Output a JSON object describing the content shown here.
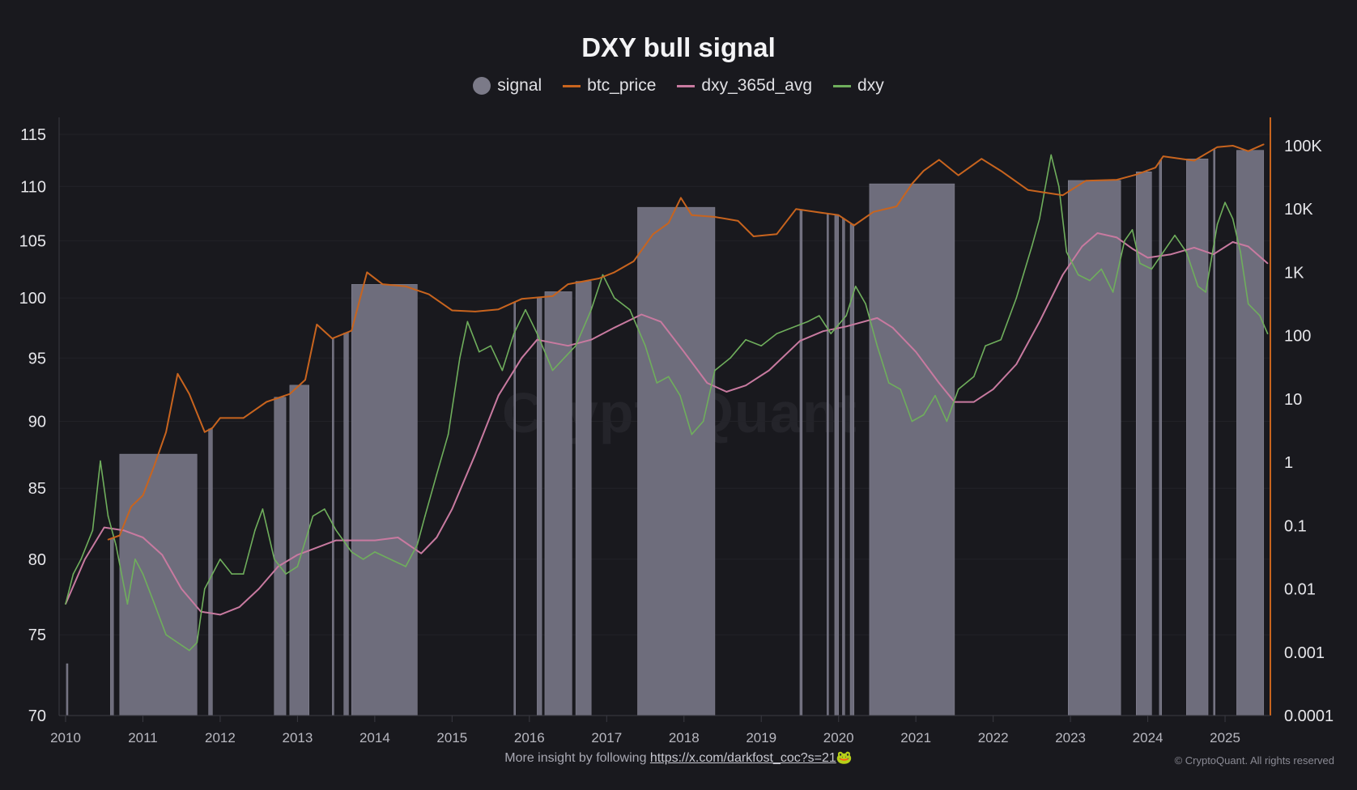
{
  "chart_data": {
    "type": "line",
    "title": "DXY bull signal",
    "legend": [
      {
        "name": "signal",
        "color": "#7b7a88",
        "marker": "circle"
      },
      {
        "name": "btc_price",
        "color": "#c8641e",
        "marker": "line"
      },
      {
        "name": "dxy_365d_avg",
        "color": "#c87aa0",
        "marker": "line"
      },
      {
        "name": "dxy",
        "color": "#6fae5c",
        "marker": "line"
      }
    ],
    "legend_position": "top-center",
    "x_ticks": [
      "2010",
      "2011",
      "2012",
      "2013",
      "2014",
      "2015",
      "2016",
      "2017",
      "2018",
      "2019",
      "2020",
      "2021",
      "2022",
      "2023",
      "2024",
      "2025"
    ],
    "xlim": [
      2010,
      2025.62
    ],
    "y_left": {
      "scale": "log",
      "range": [
        70,
        115
      ],
      "ticks": [
        "70",
        "75",
        "80",
        "85",
        "90",
        "95",
        "100",
        "105",
        "110",
        "115"
      ]
    },
    "y_right": {
      "scale": "log",
      "range": [
        0.0001,
        100000
      ],
      "ticks": [
        "0.0001",
        "0.001",
        "0.01",
        "0.1",
        "1",
        "10",
        "100",
        "1K",
        "10K",
        "100K"
      ]
    },
    "series": [
      {
        "name": "dxy",
        "axis": "left",
        "points": [
          [
            2010.0,
            77
          ],
          [
            2010.1,
            79
          ],
          [
            2010.2,
            80
          ],
          [
            2010.35,
            82
          ],
          [
            2010.45,
            87
          ],
          [
            2010.55,
            83
          ],
          [
            2010.65,
            81
          ],
          [
            2010.8,
            77
          ],
          [
            2010.9,
            80
          ],
          [
            2011.0,
            79
          ],
          [
            2011.15,
            77
          ],
          [
            2011.3,
            75
          ],
          [
            2011.45,
            74.5
          ],
          [
            2011.6,
            74
          ],
          [
            2011.7,
            74.5
          ],
          [
            2011.8,
            78
          ],
          [
            2011.9,
            79
          ],
          [
            2012.0,
            80
          ],
          [
            2012.15,
            79
          ],
          [
            2012.3,
            79
          ],
          [
            2012.45,
            82
          ],
          [
            2012.55,
            83.5
          ],
          [
            2012.7,
            80
          ],
          [
            2012.85,
            79
          ],
          [
            2013.0,
            79.5
          ],
          [
            2013.2,
            83
          ],
          [
            2013.35,
            83.5
          ],
          [
            2013.5,
            82
          ],
          [
            2013.7,
            80.5
          ],
          [
            2013.85,
            80
          ],
          [
            2014.0,
            80.5
          ],
          [
            2014.2,
            80
          ],
          [
            2014.4,
            79.5
          ],
          [
            2014.55,
            81
          ],
          [
            2014.65,
            83
          ],
          [
            2014.8,
            86
          ],
          [
            2014.95,
            89
          ],
          [
            2015.1,
            95
          ],
          [
            2015.2,
            98
          ],
          [
            2015.35,
            95.5
          ],
          [
            2015.5,
            96
          ],
          [
            2015.65,
            94
          ],
          [
            2015.8,
            97
          ],
          [
            2015.95,
            99
          ],
          [
            2016.1,
            97
          ],
          [
            2016.3,
            94
          ],
          [
            2016.45,
            95
          ],
          [
            2016.6,
            96
          ],
          [
            2016.8,
            99
          ],
          [
            2016.95,
            102
          ],
          [
            2017.1,
            100
          ],
          [
            2017.3,
            99
          ],
          [
            2017.5,
            96
          ],
          [
            2017.65,
            93
          ],
          [
            2017.8,
            93.5
          ],
          [
            2017.95,
            92
          ],
          [
            2018.1,
            89
          ],
          [
            2018.25,
            90
          ],
          [
            2018.4,
            94
          ],
          [
            2018.6,
            95
          ],
          [
            2018.8,
            96.5
          ],
          [
            2019.0,
            96
          ],
          [
            2019.2,
            97
          ],
          [
            2019.4,
            97.5
          ],
          [
            2019.6,
            98
          ],
          [
            2019.75,
            98.5
          ],
          [
            2019.9,
            97
          ],
          [
            2020.1,
            98.5
          ],
          [
            2020.22,
            101
          ],
          [
            2020.35,
            99.5
          ],
          [
            2020.5,
            96
          ],
          [
            2020.65,
            93
          ],
          [
            2020.8,
            92.5
          ],
          [
            2020.95,
            90
          ],
          [
            2021.1,
            90.5
          ],
          [
            2021.25,
            92
          ],
          [
            2021.4,
            90
          ],
          [
            2021.55,
            92.5
          ],
          [
            2021.75,
            93.5
          ],
          [
            2021.9,
            96
          ],
          [
            2022.1,
            96.5
          ],
          [
            2022.3,
            100
          ],
          [
            2022.5,
            104.5
          ],
          [
            2022.6,
            107
          ],
          [
            2022.75,
            113
          ],
          [
            2022.85,
            110
          ],
          [
            2022.95,
            104
          ],
          [
            2023.1,
            102
          ],
          [
            2023.25,
            101.5
          ],
          [
            2023.4,
            102.5
          ],
          [
            2023.55,
            100.5
          ],
          [
            2023.7,
            105
          ],
          [
            2023.8,
            106
          ],
          [
            2023.9,
            103
          ],
          [
            2024.05,
            102.5
          ],
          [
            2024.2,
            104
          ],
          [
            2024.35,
            105.5
          ],
          [
            2024.5,
            104
          ],
          [
            2024.65,
            101
          ],
          [
            2024.75,
            100.5
          ],
          [
            2024.9,
            106.5
          ],
          [
            2025.0,
            108.5
          ],
          [
            2025.1,
            107
          ],
          [
            2025.2,
            104
          ],
          [
            2025.3,
            99.5
          ],
          [
            2025.45,
            98.5
          ],
          [
            2025.55,
            97
          ]
        ]
      },
      {
        "name": "dxy_365d_avg",
        "axis": "left",
        "points": [
          [
            2010.0,
            77
          ],
          [
            2010.25,
            80
          ],
          [
            2010.5,
            82.2
          ],
          [
            2010.75,
            82
          ],
          [
            2011.0,
            81.5
          ],
          [
            2011.25,
            80.3
          ],
          [
            2011.5,
            78
          ],
          [
            2011.75,
            76.5
          ],
          [
            2012.0,
            76.3
          ],
          [
            2012.25,
            76.8
          ],
          [
            2012.5,
            78
          ],
          [
            2012.75,
            79.5
          ],
          [
            2013.0,
            80.3
          ],
          [
            2013.5,
            81.3
          ],
          [
            2014.0,
            81.3
          ],
          [
            2014.3,
            81.5
          ],
          [
            2014.6,
            80.4
          ],
          [
            2014.8,
            81.5
          ],
          [
            2015.0,
            83.5
          ],
          [
            2015.3,
            87.5
          ],
          [
            2015.6,
            92
          ],
          [
            2015.9,
            95
          ],
          [
            2016.1,
            96.5
          ],
          [
            2016.5,
            96
          ],
          [
            2016.8,
            96.5
          ],
          [
            2017.1,
            97.5
          ],
          [
            2017.45,
            98.6
          ],
          [
            2017.7,
            98
          ],
          [
            2018.0,
            95.5
          ],
          [
            2018.3,
            93
          ],
          [
            2018.55,
            92.3
          ],
          [
            2018.8,
            92.8
          ],
          [
            2019.1,
            94
          ],
          [
            2019.5,
            96.4
          ],
          [
            2019.8,
            97.2
          ],
          [
            2020.1,
            97.6
          ],
          [
            2020.5,
            98.3
          ],
          [
            2020.7,
            97.5
          ],
          [
            2021.0,
            95.5
          ],
          [
            2021.3,
            93
          ],
          [
            2021.5,
            91.5
          ],
          [
            2021.75,
            91.5
          ],
          [
            2022.0,
            92.5
          ],
          [
            2022.3,
            94.5
          ],
          [
            2022.6,
            98
          ],
          [
            2022.9,
            102
          ],
          [
            2023.15,
            104.5
          ],
          [
            2023.35,
            105.7
          ],
          [
            2023.6,
            105.3
          ],
          [
            2023.8,
            104.3
          ],
          [
            2024.0,
            103.5
          ],
          [
            2024.3,
            103.8
          ],
          [
            2024.6,
            104.4
          ],
          [
            2024.85,
            103.8
          ],
          [
            2025.1,
            104.9
          ],
          [
            2025.3,
            104.5
          ],
          [
            2025.55,
            103
          ]
        ]
      },
      {
        "name": "btc_price",
        "axis": "right",
        "points": [
          [
            2010.55,
            0.06
          ],
          [
            2010.7,
            0.07
          ],
          [
            2010.85,
            0.2
          ],
          [
            2011.0,
            0.3
          ],
          [
            2011.15,
            0.9
          ],
          [
            2011.3,
            3
          ],
          [
            2011.45,
            25
          ],
          [
            2011.6,
            12
          ],
          [
            2011.8,
            3
          ],
          [
            2011.9,
            3.5
          ],
          [
            2012.0,
            5
          ],
          [
            2012.3,
            5
          ],
          [
            2012.6,
            9
          ],
          [
            2012.9,
            12
          ],
          [
            2013.1,
            20
          ],
          [
            2013.25,
            150
          ],
          [
            2013.45,
            90
          ],
          [
            2013.7,
            120
          ],
          [
            2013.9,
            1000
          ],
          [
            2014.1,
            650
          ],
          [
            2014.4,
            600
          ],
          [
            2014.7,
            450
          ],
          [
            2015.0,
            250
          ],
          [
            2015.3,
            240
          ],
          [
            2015.6,
            260
          ],
          [
            2015.9,
            380
          ],
          [
            2016.3,
            420
          ],
          [
            2016.5,
            650
          ],
          [
            2016.9,
            800
          ],
          [
            2017.1,
            1000
          ],
          [
            2017.35,
            1500
          ],
          [
            2017.6,
            4000
          ],
          [
            2017.8,
            6000
          ],
          [
            2017.96,
            15000
          ],
          [
            2018.1,
            8000
          ],
          [
            2018.4,
            7500
          ],
          [
            2018.7,
            6500
          ],
          [
            2018.9,
            3700
          ],
          [
            2019.2,
            4000
          ],
          [
            2019.45,
            10000
          ],
          [
            2019.7,
            9000
          ],
          [
            2020.0,
            8000
          ],
          [
            2020.2,
            5500
          ],
          [
            2020.45,
            9000
          ],
          [
            2020.75,
            11000
          ],
          [
            2020.95,
            25000
          ],
          [
            2021.1,
            40000
          ],
          [
            2021.3,
            60000
          ],
          [
            2021.55,
            34000
          ],
          [
            2021.85,
            62000
          ],
          [
            2022.1,
            40000
          ],
          [
            2022.45,
            20000
          ],
          [
            2022.9,
            16500
          ],
          [
            2023.2,
            28000
          ],
          [
            2023.6,
            29000
          ],
          [
            2023.85,
            35000
          ],
          [
            2024.1,
            45000
          ],
          [
            2024.2,
            68000
          ],
          [
            2024.6,
            58000
          ],
          [
            2024.9,
            95000
          ],
          [
            2025.1,
            100000
          ],
          [
            2025.3,
            82000
          ],
          [
            2025.5,
            105000
          ]
        ]
      }
    ],
    "signal_intervals": [
      [
        2010.01,
        2010.03
      ],
      [
        2010.58,
        2010.62
      ],
      [
        2010.7,
        2011.7
      ],
      [
        2011.85,
        2011.9
      ],
      [
        2012.7,
        2012.85
      ],
      [
        2012.9,
        2013.15
      ],
      [
        2013.45,
        2013.47
      ],
      [
        2013.6,
        2013.66
      ],
      [
        2013.7,
        2014.55
      ],
      [
        2015.8,
        2015.82
      ],
      [
        2016.1,
        2016.16
      ],
      [
        2016.2,
        2016.55
      ],
      [
        2016.6,
        2016.8
      ],
      [
        2017.4,
        2018.4
      ],
      [
        2019.5,
        2019.53
      ],
      [
        2019.85,
        2019.87
      ],
      [
        2019.95,
        2020.0
      ],
      [
        2020.05,
        2020.08
      ],
      [
        2020.15,
        2020.2
      ],
      [
        2020.4,
        2021.5
      ],
      [
        2022.97,
        2023.65
      ],
      [
        2023.85,
        2024.05
      ],
      [
        2024.15,
        2024.18
      ],
      [
        2024.5,
        2024.78
      ],
      [
        2024.85,
        2024.87
      ],
      [
        2025.15,
        2025.5
      ]
    ]
  },
  "footer": {
    "text": "More insight by following ",
    "link": "https://x.com/darkfost_coc?s=21",
    "emoji": "🐸"
  },
  "copyright": "© CryptoQuant. All rights reserved",
  "watermark": "CryptoQuant"
}
